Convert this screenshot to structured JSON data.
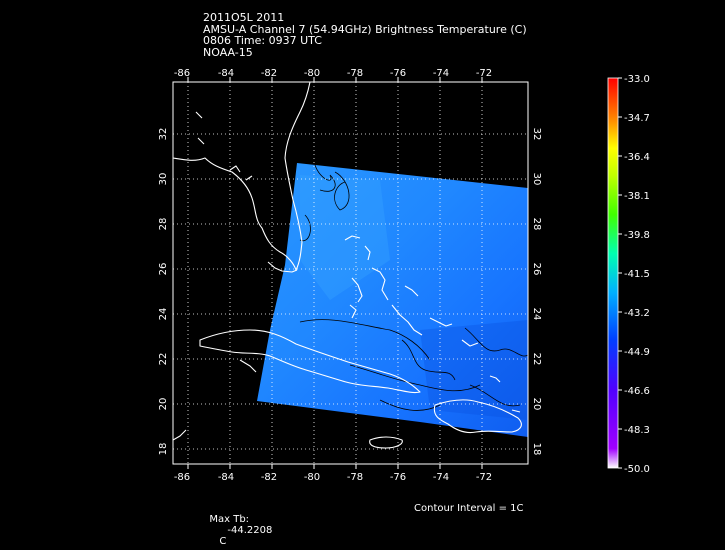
{
  "title": {
    "line1": "2011O5L 2011",
    "line2": "AMSU-A Channel 7 (54.94GHz) Brightness Temperature (C)",
    "line3": "0806 Time: 0937 UTC",
    "line4": "NOAA-15"
  },
  "map": {
    "lon_range": [
      -87,
      -70
    ],
    "lat_range": [
      17,
      34
    ],
    "lon_ticks": [
      "-86",
      "-84",
      "-82",
      "-80",
      "-78",
      "-76",
      "-74",
      "-72"
    ],
    "lat_ticks": [
      "18",
      "20",
      "22",
      "24",
      "26",
      "28",
      "30",
      "32"
    ],
    "grid": "dotted",
    "land_color": "#000000",
    "coastline_color": "#ffffff",
    "contour_color": "#000000"
  },
  "colorbar": {
    "labels": [
      "-33.0",
      "-34.7",
      "-36.4",
      "-38.1",
      "-39.8",
      "-41.5",
      "-43.2",
      "-44.9",
      "-46.6",
      "-48.3",
      "-50.0"
    ],
    "min": -50.0,
    "max": -33.0,
    "colors": [
      "#ffffff",
      "#8000ff",
      "#0000ff",
      "#0060ff",
      "#00c0ff",
      "#00ff80",
      "#80ff00",
      "#ffff00",
      "#ff8000",
      "#ff0000"
    ]
  },
  "footer": {
    "max_tb_label": "Max Tb:",
    "max_tb_value": "-44.2208",
    "max_tb_unit": "C",
    "contour_interval": "Contour Interval = 1C"
  }
}
